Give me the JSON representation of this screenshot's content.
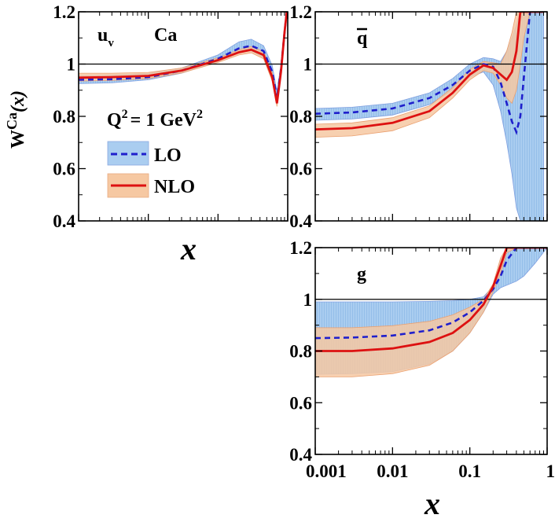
{
  "chart_data": {
    "type": "line",
    "ylabel_base": "W",
    "ylabel_sup": "Ca",
    "ylabel_arg": "(x)",
    "xlabel": "x",
    "q2_main": "Q",
    "q2_exp": "2",
    "q2_val": "= 1 GeV",
    "legend": {
      "lo": "LO",
      "nlo": "NLO"
    },
    "colors": {
      "lo_band": "#aacdf0",
      "nlo_band": "#f6c8a2",
      "lo_line": "#1f1fcc",
      "nlo_line": "#dd1111"
    },
    "xlim": [
      0.001,
      1
    ],
    "ylim": [
      0.4,
      1.2
    ],
    "y_ticks": [
      "0.4",
      "0.6",
      "0.8",
      "1",
      "1.2"
    ],
    "x_ticks": [
      "0.001",
      "0.01",
      "0.1",
      "1"
    ],
    "panels": [
      {
        "id": "uv",
        "label": "u",
        "label_sub": "v",
        "nucleus": "Ca",
        "x": [
          0.001,
          0.003,
          0.01,
          0.03,
          0.1,
          0.2,
          0.3,
          0.45,
          0.6,
          0.7,
          0.8,
          0.9,
          0.97
        ],
        "lo": [
          0.94,
          0.942,
          0.95,
          0.975,
          1.02,
          1.06,
          1.07,
          1.05,
          0.97,
          0.87,
          0.98,
          1.12,
          1.2
        ],
        "lo_lo": [
          0.925,
          0.928,
          0.94,
          0.965,
          1.01,
          1.045,
          1.05,
          1.025,
          0.95,
          0.85,
          0.96,
          1.1,
          1.2
        ],
        "lo_hi": [
          0.955,
          0.958,
          0.965,
          0.985,
          1.035,
          1.085,
          1.095,
          1.07,
          0.995,
          0.895,
          1.0,
          1.14,
          1.2
        ],
        "nlo": [
          0.948,
          0.95,
          0.955,
          0.975,
          1.015,
          1.045,
          1.055,
          1.035,
          0.95,
          0.85,
          0.97,
          1.12,
          1.2
        ],
        "nlo_lo": [
          0.935,
          0.937,
          0.945,
          0.966,
          1.006,
          1.035,
          1.043,
          1.02,
          0.935,
          0.838,
          0.955,
          1.1,
          1.2
        ],
        "nlo_hi": [
          0.965,
          0.965,
          0.968,
          0.985,
          1.024,
          1.055,
          1.067,
          1.048,
          0.967,
          0.865,
          0.985,
          1.14,
          1.2
        ]
      },
      {
        "id": "qbar",
        "label": "q",
        "x": [
          0.001,
          0.003,
          0.01,
          0.03,
          0.06,
          0.1,
          0.15,
          0.2,
          0.25,
          0.3,
          0.35,
          0.4,
          0.45,
          0.5,
          0.6,
          0.7,
          0.8,
          0.9
        ],
        "lo": [
          0.81,
          0.815,
          0.83,
          0.87,
          0.92,
          0.975,
          1.0,
          0.99,
          0.93,
          0.85,
          0.78,
          0.74,
          0.8,
          0.95,
          1.2,
          1.2,
          1.2,
          1.2
        ],
        "lo_lo": [
          0.785,
          0.79,
          0.805,
          0.845,
          0.9,
          0.95,
          0.97,
          0.92,
          0.82,
          0.7,
          0.58,
          0.45,
          0.4,
          0.4,
          0.4,
          0.4,
          0.4,
          0.4
        ],
        "lo_hi": [
          0.83,
          0.835,
          0.85,
          0.89,
          0.945,
          1.0,
          1.025,
          1.02,
          1.01,
          1.05,
          1.1,
          1.15,
          1.2,
          1.2,
          1.2,
          1.2,
          1.2,
          1.2
        ],
        "nlo": [
          0.75,
          0.755,
          0.775,
          0.82,
          0.89,
          0.96,
          0.995,
          0.985,
          0.96,
          0.94,
          0.97,
          1.05,
          1.2,
          1.2,
          1.2,
          1.2,
          1.2,
          1.2
        ],
        "nlo_lo": [
          0.72,
          0.725,
          0.745,
          0.795,
          0.87,
          0.94,
          0.975,
          0.965,
          0.92,
          0.87,
          0.85,
          0.9,
          1.0,
          1.1,
          1.2,
          1.2,
          1.2,
          1.2
        ],
        "nlo_hi": [
          0.77,
          0.775,
          0.795,
          0.84,
          0.91,
          0.98,
          1.01,
          1.005,
          1.0,
          1.05,
          1.12,
          1.2,
          1.2,
          1.2,
          1.2,
          1.2,
          1.2,
          1.2
        ]
      },
      {
        "id": "g",
        "label": "g",
        "x": [
          0.001,
          0.003,
          0.01,
          0.03,
          0.06,
          0.1,
          0.15,
          0.2,
          0.25,
          0.3,
          0.4,
          0.5,
          0.7,
          1.0
        ],
        "lo": [
          0.85,
          0.852,
          0.86,
          0.88,
          0.91,
          0.95,
          0.995,
          1.04,
          1.09,
          1.15,
          1.2,
          1.2,
          1.2,
          1.2
        ],
        "lo_lo": [
          0.71,
          0.712,
          0.72,
          0.75,
          0.8,
          0.87,
          0.95,
          1.02,
          1.045,
          1.055,
          1.07,
          1.09,
          1.14,
          1.2
        ],
        "lo_hi": [
          0.99,
          0.99,
          0.99,
          0.992,
          0.995,
          1.0,
          1.01,
          1.05,
          1.15,
          1.2,
          1.2,
          1.2,
          1.2,
          1.2
        ],
        "nlo": [
          0.8,
          0.8,
          0.81,
          0.835,
          0.87,
          0.92,
          0.98,
          1.05,
          1.13,
          1.2,
          1.2,
          1.2,
          1.2,
          1.2
        ],
        "nlo_lo": [
          0.7,
          0.7,
          0.712,
          0.745,
          0.8,
          0.87,
          0.95,
          1.03,
          1.1,
          1.18,
          1.2,
          1.2,
          1.2,
          1.2
        ],
        "nlo_hi": [
          0.89,
          0.89,
          0.898,
          0.915,
          0.94,
          0.97,
          1.0,
          1.06,
          1.16,
          1.2,
          1.2,
          1.2,
          1.2,
          1.2
        ]
      }
    ]
  }
}
